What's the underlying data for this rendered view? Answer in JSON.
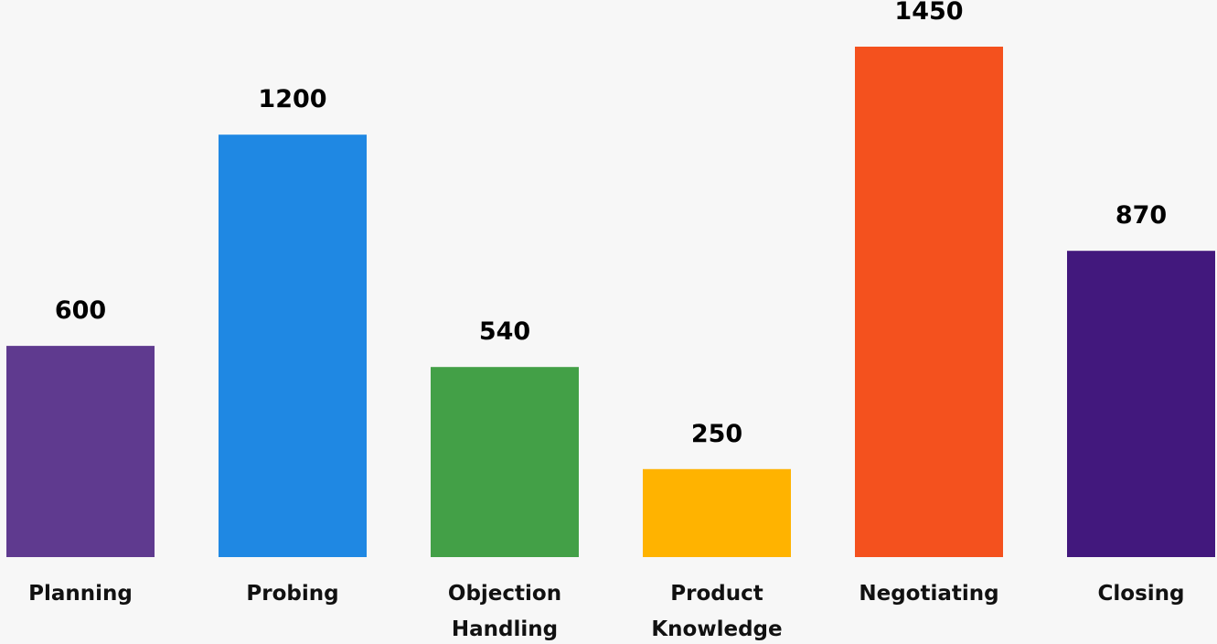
{
  "chart_data": {
    "type": "bar",
    "title": "",
    "xlabel": "",
    "ylabel": "",
    "ylim": [
      0,
      1450
    ],
    "grid": false,
    "legend": "none",
    "categories": [
      [
        "Planning"
      ],
      [
        "Probing"
      ],
      [
        "Objection",
        "Handling"
      ],
      [
        "Product",
        "Knowledge"
      ],
      [
        "Negotiating"
      ],
      [
        "Closing"
      ]
    ],
    "values": [
      600,
      1200,
      540,
      250,
      1450,
      870
    ],
    "value_labels": [
      "600",
      "1200",
      "540",
      "250",
      "1450",
      "870"
    ],
    "colors": [
      "#5f3a8f",
      "#1f88e3",
      "#43a047",
      "#ffb300",
      "#f4511e",
      "#42187d"
    ]
  }
}
